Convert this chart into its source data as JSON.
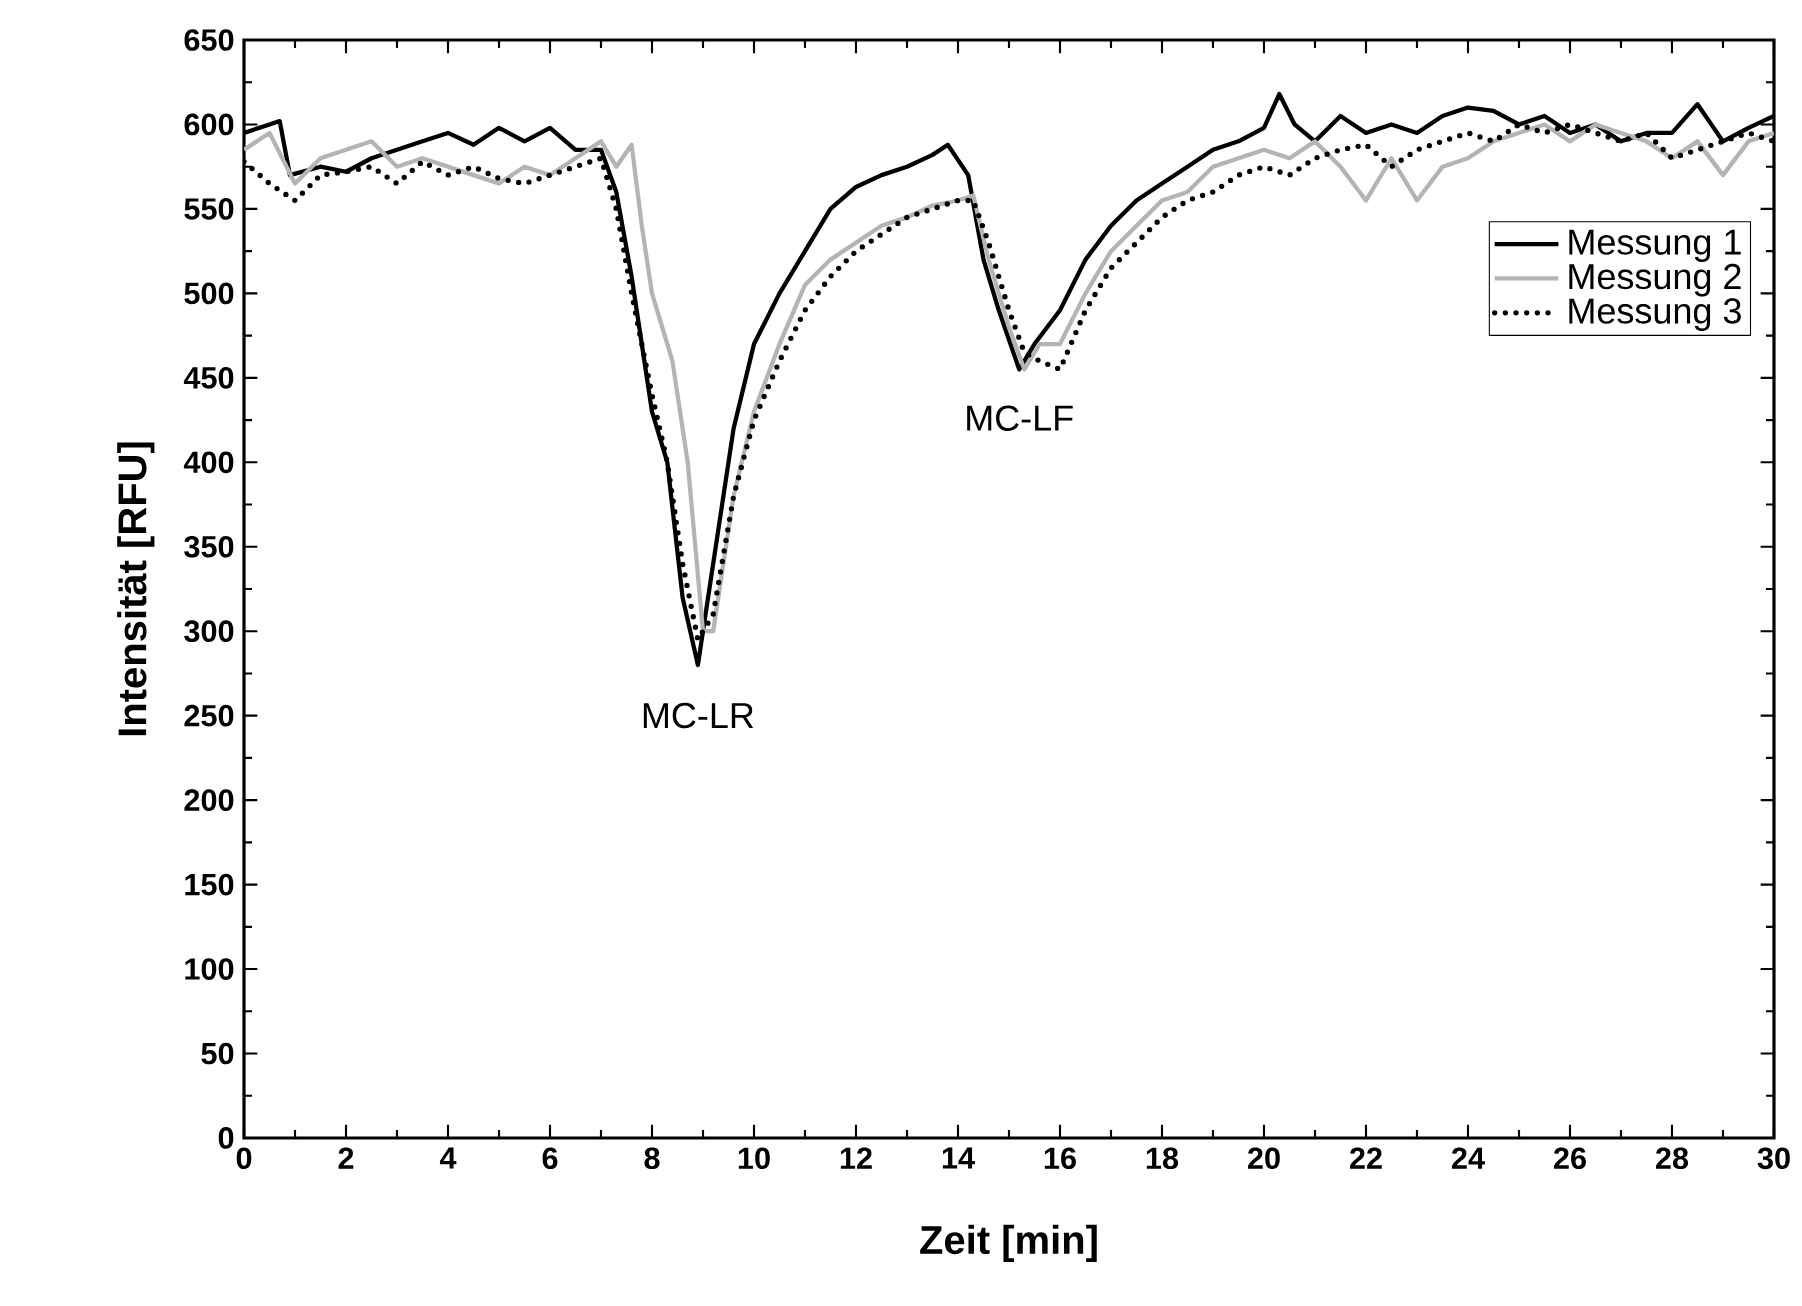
{
  "chart_data": {
    "type": "line",
    "xlabel": "Zeit [min]",
    "ylabel": "Intensität [RFU]",
    "xlim": [
      0,
      30
    ],
    "ylim": [
      0,
      650
    ],
    "xticks": [
      0,
      2,
      4,
      6,
      8,
      10,
      12,
      14,
      16,
      18,
      20,
      22,
      24,
      26,
      28,
      30
    ],
    "yticks": [
      0,
      50,
      100,
      150,
      200,
      250,
      300,
      350,
      400,
      450,
      500,
      550,
      600,
      650
    ],
    "grid": false,
    "legend": "top right",
    "marker": "none",
    "annotations": [
      {
        "text": "MC-LR",
        "x": 8.9,
        "y": 279
      },
      {
        "text": "MC-LF",
        "x": 15.2,
        "y": 455
      }
    ],
    "series": [
      {
        "name": "Messung 1",
        "color": "#000000",
        "line_style": "solid",
        "x": [
          0,
          0.5,
          0.7,
          0.9,
          1.5,
          2,
          2.5,
          3,
          3.5,
          4,
          4.5,
          5,
          5.5,
          6,
          6.5,
          7,
          7.3,
          7.6,
          8,
          8.3,
          8.6,
          8.9,
          9.2,
          9.6,
          10,
          10.5,
          11,
          11.5,
          12,
          12.5,
          13,
          13.5,
          13.8,
          14.2,
          14.5,
          14.8,
          15.2,
          15.5,
          16,
          16.5,
          17,
          17.5,
          18,
          18.5,
          19,
          19.5,
          20,
          20.3,
          20.6,
          21,
          21.5,
          22,
          22.5,
          23,
          23.5,
          24,
          24.5,
          25,
          25.5,
          26,
          26.5,
          27,
          27.5,
          28,
          28.5,
          29,
          29.5,
          30
        ],
        "values": [
          595,
          600,
          602,
          570,
          575,
          572,
          580,
          585,
          590,
          595,
          588,
          598,
          590,
          598,
          585,
          585,
          560,
          510,
          430,
          400,
          320,
          280,
          340,
          420,
          470,
          500,
          525,
          550,
          563,
          570,
          575,
          582,
          588,
          570,
          520,
          490,
          455,
          470,
          490,
          520,
          540,
          555,
          565,
          575,
          585,
          590,
          598,
          618,
          600,
          590,
          605,
          595,
          600,
          595,
          605,
          610,
          608,
          600,
          605,
          595,
          600,
          590,
          595,
          595,
          612,
          590,
          598,
          605
        ]
      },
      {
        "name": "Messung 2",
        "color": "#b4b4b4",
        "line_style": "solid",
        "x": [
          0,
          0.5,
          1,
          1.5,
          2,
          2.5,
          3,
          3.5,
          4,
          4.5,
          5,
          5.5,
          6,
          6.5,
          7,
          7.3,
          7.6,
          7.8,
          8,
          8.4,
          8.7,
          9,
          9.2,
          9.6,
          10,
          10.5,
          11,
          11.5,
          12,
          12.5,
          13,
          13.5,
          14,
          14.3,
          14.6,
          15,
          15.3,
          15.6,
          16,
          16.5,
          17,
          17.5,
          18,
          18.5,
          19,
          19.5,
          20,
          20.5,
          21,
          21.5,
          22,
          22.5,
          23,
          23.5,
          24,
          24.5,
          25,
          25.5,
          26,
          26.5,
          27,
          27.5,
          28,
          28.5,
          29,
          29.5,
          30
        ],
        "values": [
          585,
          595,
          565,
          580,
          585,
          590,
          575,
          580,
          575,
          570,
          565,
          575,
          570,
          580,
          590,
          575,
          588,
          540,
          500,
          460,
          400,
          300,
          300,
          380,
          430,
          470,
          505,
          520,
          530,
          540,
          545,
          552,
          555,
          558,
          520,
          480,
          455,
          470,
          470,
          500,
          525,
          540,
          555,
          560,
          575,
          580,
          585,
          580,
          590,
          575,
          555,
          580,
          555,
          575,
          580,
          590,
          595,
          600,
          590,
          600,
          595,
          590,
          580,
          590,
          570,
          590,
          595
        ]
      },
      {
        "name": "Messung 3",
        "color": "#000000",
        "line_style": "dotted",
        "x": [
          0,
          0.5,
          1,
          1.5,
          2,
          2.5,
          3,
          3.5,
          4,
          4.5,
          5,
          5.5,
          6,
          6.5,
          7,
          7.3,
          7.6,
          8,
          8.3,
          8.6,
          8.9,
          9.2,
          9.6,
          10,
          10.5,
          11,
          11.5,
          12,
          12.5,
          13,
          13.5,
          14,
          14.3,
          14.6,
          15,
          15.3,
          15.6,
          16,
          16.5,
          17,
          17.5,
          18,
          18.5,
          19,
          19.5,
          20,
          20.5,
          21,
          21.5,
          22,
          22.5,
          23,
          23.5,
          24,
          24.5,
          25,
          25.5,
          26,
          26.5,
          27,
          27.5,
          28,
          28.5,
          29,
          29.5,
          30
        ],
        "values": [
          578,
          565,
          555,
          570,
          572,
          575,
          565,
          578,
          570,
          575,
          568,
          565,
          570,
          575,
          580,
          550,
          500,
          440,
          400,
          340,
          295,
          310,
          380,
          425,
          460,
          490,
          510,
          525,
          535,
          545,
          550,
          555,
          555,
          530,
          490,
          465,
          460,
          455,
          490,
          515,
          530,
          545,
          555,
          560,
          570,
          575,
          570,
          580,
          585,
          588,
          575,
          585,
          590,
          595,
          590,
          600,
          595,
          600,
          595,
          590,
          595,
          580,
          585,
          590,
          595,
          590
        ]
      }
    ]
  }
}
